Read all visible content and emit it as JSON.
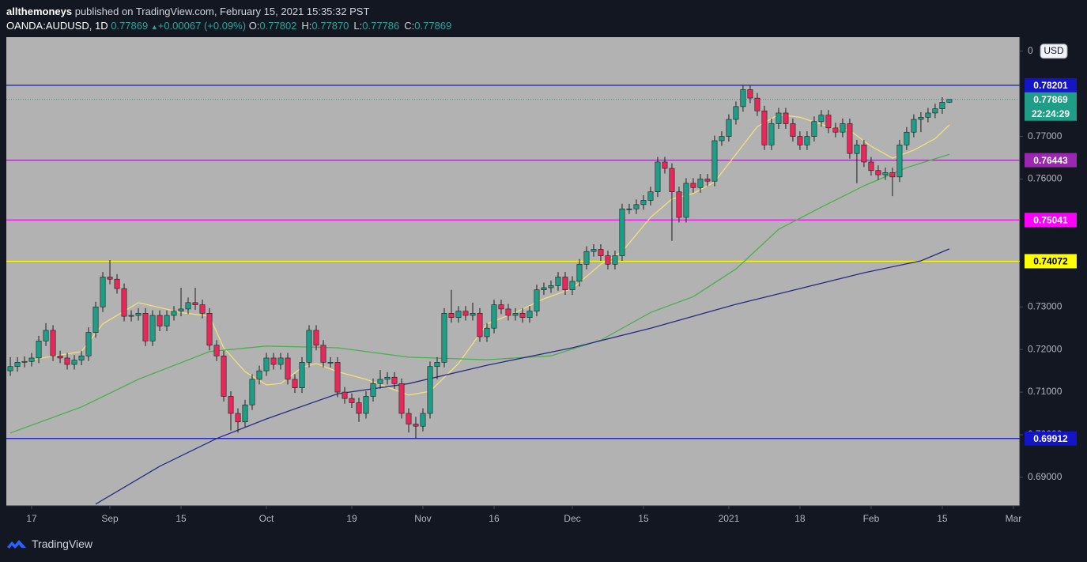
{
  "header": {
    "publisher": "allthemoneys",
    "published": "published on TradingView.com, February 15, 2021 15:35:32 PST",
    "symbol": "OANDA:AUDUSD, 1D",
    "last": "0.77869",
    "change": "+0.00067 (+0.09%)",
    "ohlc": [
      {
        "label": "O:",
        "value": "0.77802"
      },
      {
        "label": "H:",
        "value": "0.77870"
      },
      {
        "label": "L:",
        "value": "0.77786"
      },
      {
        "label": "C:",
        "value": "0.77869"
      }
    ]
  },
  "footer": {
    "brand": "TradingView"
  },
  "chart_data": {
    "type": "candlestick",
    "currency": "USD",
    "up_color": "#1e9e86",
    "down_color": "#e8285a",
    "wick_color": "#1e1e1e",
    "xlim": [
      -0.56,
      141.9
    ],
    "ylim": [
      0.6833,
      0.7933
    ],
    "xticks": [
      {
        "value": 3,
        "label": "17"
      },
      {
        "value": 14,
        "label": "Sep"
      },
      {
        "value": 24,
        "label": "15"
      },
      {
        "value": 36,
        "label": "Oct"
      },
      {
        "value": 48,
        "label": "19"
      },
      {
        "value": 58,
        "label": "Nov"
      },
      {
        "value": 68,
        "label": "16"
      },
      {
        "value": 79,
        "label": "Dec"
      },
      {
        "value": 89,
        "label": "15"
      },
      {
        "value": 101,
        "label": "2021"
      },
      {
        "value": 111,
        "label": "18"
      },
      {
        "value": 121,
        "label": "Feb"
      },
      {
        "value": 131,
        "label": "15"
      },
      {
        "value": 141,
        "label": "Mar"
      }
    ],
    "yticks": [
      {
        "value": 0.69,
        "label": "0.69000"
      },
      {
        "value": 0.7,
        "label": "0.70000"
      },
      {
        "value": 0.71,
        "label": "0.71000"
      },
      {
        "value": 0.72,
        "label": "0.72000"
      },
      {
        "value": 0.73,
        "label": "0.73000"
      },
      {
        "value": 0.76,
        "label": "0.76000"
      },
      {
        "value": 0.77,
        "label": "0.77000"
      },
      {
        "value": 0.79,
        "label": "0"
      }
    ],
    "x": [
      0,
      1,
      2,
      3,
      4,
      5,
      6,
      7,
      8,
      9,
      10,
      11,
      12,
      13,
      14,
      15,
      16,
      17,
      18,
      19,
      20,
      21,
      22,
      23,
      24,
      25,
      26,
      27,
      28,
      29,
      30,
      31,
      32,
      33,
      34,
      35,
      36,
      37,
      38,
      39,
      40,
      41,
      42,
      43,
      44,
      45,
      46,
      47,
      48,
      49,
      50,
      51,
      52,
      53,
      54,
      55,
      56,
      57,
      58,
      59,
      60,
      61,
      62,
      63,
      64,
      65,
      66,
      67,
      68,
      69,
      70,
      71,
      72,
      73,
      74,
      75,
      76,
      77,
      78,
      79,
      80,
      81,
      82,
      83,
      84,
      85,
      86,
      87,
      88,
      89,
      90,
      91,
      92,
      93,
      94,
      95,
      96,
      97,
      98,
      99,
      100,
      101,
      102,
      103,
      104,
      105,
      106,
      107,
      108,
      109,
      110,
      111,
      112,
      113,
      114,
      115,
      116,
      117,
      118,
      119,
      120,
      121,
      122,
      123,
      124,
      125,
      126,
      127,
      128,
      129,
      130,
      131,
      132
    ],
    "ohlc": [
      [
        0.715,
        0.7182,
        0.7138,
        0.716
      ],
      [
        0.716,
        0.7182,
        0.7148,
        0.717
      ],
      [
        0.717,
        0.7184,
        0.7158,
        0.7172
      ],
      [
        0.7172,
        0.7192,
        0.716,
        0.718
      ],
      [
        0.718,
        0.7232,
        0.7168,
        0.722
      ],
      [
        0.722,
        0.7262,
        0.7208,
        0.7245
      ],
      [
        0.7245,
        0.7257,
        0.7173,
        0.7185
      ],
      [
        0.7185,
        0.7197,
        0.7168,
        0.718
      ],
      [
        0.718,
        0.7192,
        0.7153,
        0.7165
      ],
      [
        0.7165,
        0.7187,
        0.7153,
        0.7175
      ],
      [
        0.7175,
        0.7197,
        0.7163,
        0.7185
      ],
      [
        0.7185,
        0.7252,
        0.7173,
        0.724
      ],
      [
        0.724,
        0.7312,
        0.7228,
        0.73
      ],
      [
        0.73,
        0.7382,
        0.7288,
        0.737
      ],
      [
        0.737,
        0.741,
        0.7353,
        0.7365
      ],
      [
        0.7365,
        0.7377,
        0.7331,
        0.7343
      ],
      [
        0.7343,
        0.7355,
        0.7266,
        0.7278
      ],
      [
        0.7278,
        0.7292,
        0.7266,
        0.728
      ],
      [
        0.728,
        0.7297,
        0.7268,
        0.7285
      ],
      [
        0.7285,
        0.7297,
        0.7208,
        0.722
      ],
      [
        0.722,
        0.7292,
        0.7208,
        0.728
      ],
      [
        0.728,
        0.7292,
        0.7243,
        0.7255
      ],
      [
        0.7255,
        0.7292,
        0.7243,
        0.728
      ],
      [
        0.728,
        0.7302,
        0.7268,
        0.729
      ],
      [
        0.729,
        0.7345,
        0.7278,
        0.7295
      ],
      [
        0.7295,
        0.7322,
        0.7283,
        0.731
      ],
      [
        0.731,
        0.7345,
        0.7293,
        0.7305
      ],
      [
        0.7305,
        0.7317,
        0.7273,
        0.7285
      ],
      [
        0.7285,
        0.7297,
        0.7198,
        0.721
      ],
      [
        0.721,
        0.7222,
        0.7173,
        0.7185
      ],
      [
        0.7185,
        0.7197,
        0.7078,
        0.709
      ],
      [
        0.709,
        0.7102,
        0.701,
        0.705
      ],
      [
        0.705,
        0.7062,
        0.7005,
        0.703
      ],
      [
        0.703,
        0.7082,
        0.7018,
        0.707
      ],
      [
        0.707,
        0.7142,
        0.7058,
        0.713
      ],
      [
        0.713,
        0.7162,
        0.7118,
        0.715
      ],
      [
        0.715,
        0.7192,
        0.7138,
        0.718
      ],
      [
        0.718,
        0.7192,
        0.7153,
        0.7165
      ],
      [
        0.7165,
        0.7192,
        0.7153,
        0.718
      ],
      [
        0.718,
        0.7192,
        0.7118,
        0.713
      ],
      [
        0.713,
        0.7142,
        0.7098,
        0.711
      ],
      [
        0.711,
        0.7182,
        0.7098,
        0.717
      ],
      [
        0.717,
        0.7257,
        0.7158,
        0.7245
      ],
      [
        0.7245,
        0.7257,
        0.7198,
        0.721
      ],
      [
        0.721,
        0.7222,
        0.7158,
        0.717
      ],
      [
        0.717,
        0.7182,
        0.7158,
        0.717
      ],
      [
        0.717,
        0.7182,
        0.7088,
        0.71
      ],
      [
        0.71,
        0.7112,
        0.7073,
        0.7085
      ],
      [
        0.7085,
        0.7097,
        0.7063,
        0.7075
      ],
      [
        0.7075,
        0.7087,
        0.703,
        0.705
      ],
      [
        0.705,
        0.7102,
        0.7038,
        0.709
      ],
      [
        0.709,
        0.7132,
        0.7078,
        0.712
      ],
      [
        0.712,
        0.7152,
        0.7108,
        0.713
      ],
      [
        0.713,
        0.7147,
        0.7118,
        0.7135
      ],
      [
        0.7135,
        0.7147,
        0.7108,
        0.712
      ],
      [
        0.712,
        0.7132,
        0.7038,
        0.705
      ],
      [
        0.705,
        0.7062,
        0.7005,
        0.7025
      ],
      [
        0.7025,
        0.7042,
        0.6991,
        0.702
      ],
      [
        0.702,
        0.7062,
        0.7008,
        0.705
      ],
      [
        0.705,
        0.7172,
        0.7038,
        0.716
      ],
      [
        0.716,
        0.7182,
        0.713,
        0.717
      ],
      [
        0.717,
        0.7297,
        0.7158,
        0.7285
      ],
      [
        0.7285,
        0.734,
        0.7263,
        0.7275
      ],
      [
        0.7275,
        0.7302,
        0.7263,
        0.729
      ],
      [
        0.729,
        0.7302,
        0.7268,
        0.728
      ],
      [
        0.728,
        0.731,
        0.7268,
        0.7285
      ],
      [
        0.7285,
        0.7297,
        0.7218,
        0.723
      ],
      [
        0.723,
        0.7262,
        0.7218,
        0.725
      ],
      [
        0.725,
        0.7317,
        0.7238,
        0.7305
      ],
      [
        0.7305,
        0.7317,
        0.7283,
        0.7295
      ],
      [
        0.7295,
        0.7307,
        0.7268,
        0.728
      ],
      [
        0.728,
        0.7297,
        0.7268,
        0.7285
      ],
      [
        0.7285,
        0.7297,
        0.7263,
        0.7275
      ],
      [
        0.7275,
        0.7302,
        0.7263,
        0.729
      ],
      [
        0.729,
        0.7352,
        0.7278,
        0.734
      ],
      [
        0.734,
        0.7357,
        0.7328,
        0.7345
      ],
      [
        0.7345,
        0.7362,
        0.7333,
        0.735
      ],
      [
        0.735,
        0.7382,
        0.7338,
        0.737
      ],
      [
        0.737,
        0.7382,
        0.7328,
        0.734
      ],
      [
        0.734,
        0.7372,
        0.7328,
        0.736
      ],
      [
        0.736,
        0.7412,
        0.7348,
        0.74
      ],
      [
        0.74,
        0.7442,
        0.7388,
        0.743
      ],
      [
        0.743,
        0.7447,
        0.7418,
        0.7435
      ],
      [
        0.7435,
        0.7447,
        0.7408,
        0.742
      ],
      [
        0.742,
        0.7432,
        0.7388,
        0.74
      ],
      [
        0.74,
        0.7432,
        0.7388,
        0.742
      ],
      [
        0.742,
        0.7542,
        0.7408,
        0.753
      ],
      [
        0.753,
        0.7542,
        0.7518,
        0.753
      ],
      [
        0.753,
        0.7552,
        0.7518,
        0.754
      ],
      [
        0.754,
        0.7562,
        0.7528,
        0.755
      ],
      [
        0.755,
        0.7582,
        0.7538,
        0.757
      ],
      [
        0.757,
        0.7652,
        0.7558,
        0.764
      ],
      [
        0.764,
        0.7652,
        0.7613,
        0.7625
      ],
      [
        0.7625,
        0.7637,
        0.7455,
        0.757
      ],
      [
        0.757,
        0.7582,
        0.7498,
        0.751
      ],
      [
        0.751,
        0.7602,
        0.7498,
        0.759
      ],
      [
        0.759,
        0.7602,
        0.7568,
        0.758
      ],
      [
        0.758,
        0.7612,
        0.7568,
        0.76
      ],
      [
        0.76,
        0.7612,
        0.7583,
        0.7595
      ],
      [
        0.7595,
        0.7702,
        0.7583,
        0.769
      ],
      [
        0.769,
        0.7712,
        0.7678,
        0.77
      ],
      [
        0.77,
        0.7752,
        0.7688,
        0.774
      ],
      [
        0.774,
        0.7782,
        0.7728,
        0.777
      ],
      [
        0.777,
        0.782,
        0.7758,
        0.781
      ],
      [
        0.781,
        0.782,
        0.7778,
        0.779
      ],
      [
        0.779,
        0.7802,
        0.7748,
        0.776
      ],
      [
        0.776,
        0.7772,
        0.7668,
        0.768
      ],
      [
        0.768,
        0.7742,
        0.7668,
        0.773
      ],
      [
        0.773,
        0.7767,
        0.7718,
        0.7755
      ],
      [
        0.7755,
        0.7767,
        0.7718,
        0.773
      ],
      [
        0.773,
        0.7742,
        0.7688,
        0.77
      ],
      [
        0.77,
        0.7712,
        0.7668,
        0.768
      ],
      [
        0.768,
        0.7712,
        0.7668,
        0.77
      ],
      [
        0.77,
        0.7747,
        0.7688,
        0.7735
      ],
      [
        0.7735,
        0.7762,
        0.7723,
        0.775
      ],
      [
        0.775,
        0.7762,
        0.7708,
        0.772
      ],
      [
        0.772,
        0.7732,
        0.7698,
        0.771
      ],
      [
        0.771,
        0.7742,
        0.7698,
        0.773
      ],
      [
        0.773,
        0.7742,
        0.7648,
        0.766
      ],
      [
        0.766,
        0.7692,
        0.759,
        0.768
      ],
      [
        0.768,
        0.7692,
        0.7628,
        0.764
      ],
      [
        0.764,
        0.7652,
        0.7608,
        0.762
      ],
      [
        0.762,
        0.7632,
        0.7598,
        0.761
      ],
      [
        0.761,
        0.7627,
        0.7598,
        0.7615
      ],
      [
        0.7615,
        0.7627,
        0.756,
        0.7605
      ],
      [
        0.7605,
        0.7692,
        0.7593,
        0.768
      ],
      [
        0.768,
        0.7722,
        0.7668,
        0.771
      ],
      [
        0.771,
        0.7752,
        0.7698,
        0.774
      ],
      [
        0.774,
        0.7757,
        0.771,
        0.7745
      ],
      [
        0.7745,
        0.7767,
        0.7733,
        0.7755
      ],
      [
        0.7755,
        0.7777,
        0.7743,
        0.7765
      ],
      [
        0.7765,
        0.7792,
        0.7753,
        0.778
      ],
      [
        0.77802,
        0.7787,
        0.77786,
        0.77869
      ]
    ],
    "lines": [
      {
        "color": "#f3df7a",
        "x": [
          3,
          10,
          13,
          18,
          24,
          28,
          30,
          33,
          36,
          38,
          41,
          43,
          46,
          50,
          56,
          59,
          63,
          67,
          71,
          75,
          79,
          83,
          86,
          90,
          93,
          96,
          99,
          102,
          105,
          108,
          111,
          115,
          118,
          121,
          124,
          127,
          130,
          132
        ],
        "values": [
          0.7176,
          0.7195,
          0.726,
          0.731,
          0.7287,
          0.7278,
          0.7204,
          0.7148,
          0.7117,
          0.712,
          0.7158,
          0.7167,
          0.7148,
          0.713,
          0.7093,
          0.7102,
          0.7167,
          0.726,
          0.7287,
          0.7319,
          0.7343,
          0.74,
          0.743,
          0.751,
          0.7553,
          0.7566,
          0.7593,
          0.7658,
          0.7723,
          0.7751,
          0.7745,
          0.7723,
          0.7714,
          0.7677,
          0.7649,
          0.7668,
          0.7695,
          0.7727
        ]
      },
      {
        "color": "#4caf50",
        "x": [
          0,
          10,
          18,
          28,
          36,
          46,
          56,
          67,
          76,
          83,
          90,
          96,
          102,
          108,
          114,
          120,
          126,
          132
        ],
        "values": [
          0.7004,
          0.7065,
          0.713,
          0.7195,
          0.7208,
          0.7204,
          0.7182,
          0.7176,
          0.7185,
          0.7222,
          0.7287,
          0.7324,
          0.7389,
          0.7482,
          0.7534,
          0.7584,
          0.7627,
          0.7658
        ]
      },
      {
        "color": "#2a2a85",
        "x": [
          12,
          21,
          29,
          36,
          46,
          56,
          67,
          79,
          90,
          102,
          111,
          120,
          128,
          132
        ],
        "values": [
          0.6837,
          0.6926,
          0.6991,
          0.7037,
          0.7096,
          0.712,
          0.7163,
          0.7204,
          0.725,
          0.7306,
          0.7343,
          0.738,
          0.7408,
          0.7436
        ]
      }
    ],
    "levels": [
      {
        "value": 0.78201,
        "color": "#1414c8",
        "text_color": "#ffffff"
      },
      {
        "value": 0.76443,
        "color": "#9c27b0",
        "text_color": "#ffffff"
      },
      {
        "value": 0.75041,
        "color": "#ff00ff",
        "text_color": "#ffffff"
      },
      {
        "value": 0.74072,
        "color": "#ffff00",
        "text_color": "#000000"
      },
      {
        "value": 0.69912,
        "color": "#1414c8",
        "text_color": "#ffffff"
      }
    ],
    "last_price": {
      "value": 0.77869,
      "color": "#1e9e86",
      "countdown": "22:24:29"
    }
  }
}
